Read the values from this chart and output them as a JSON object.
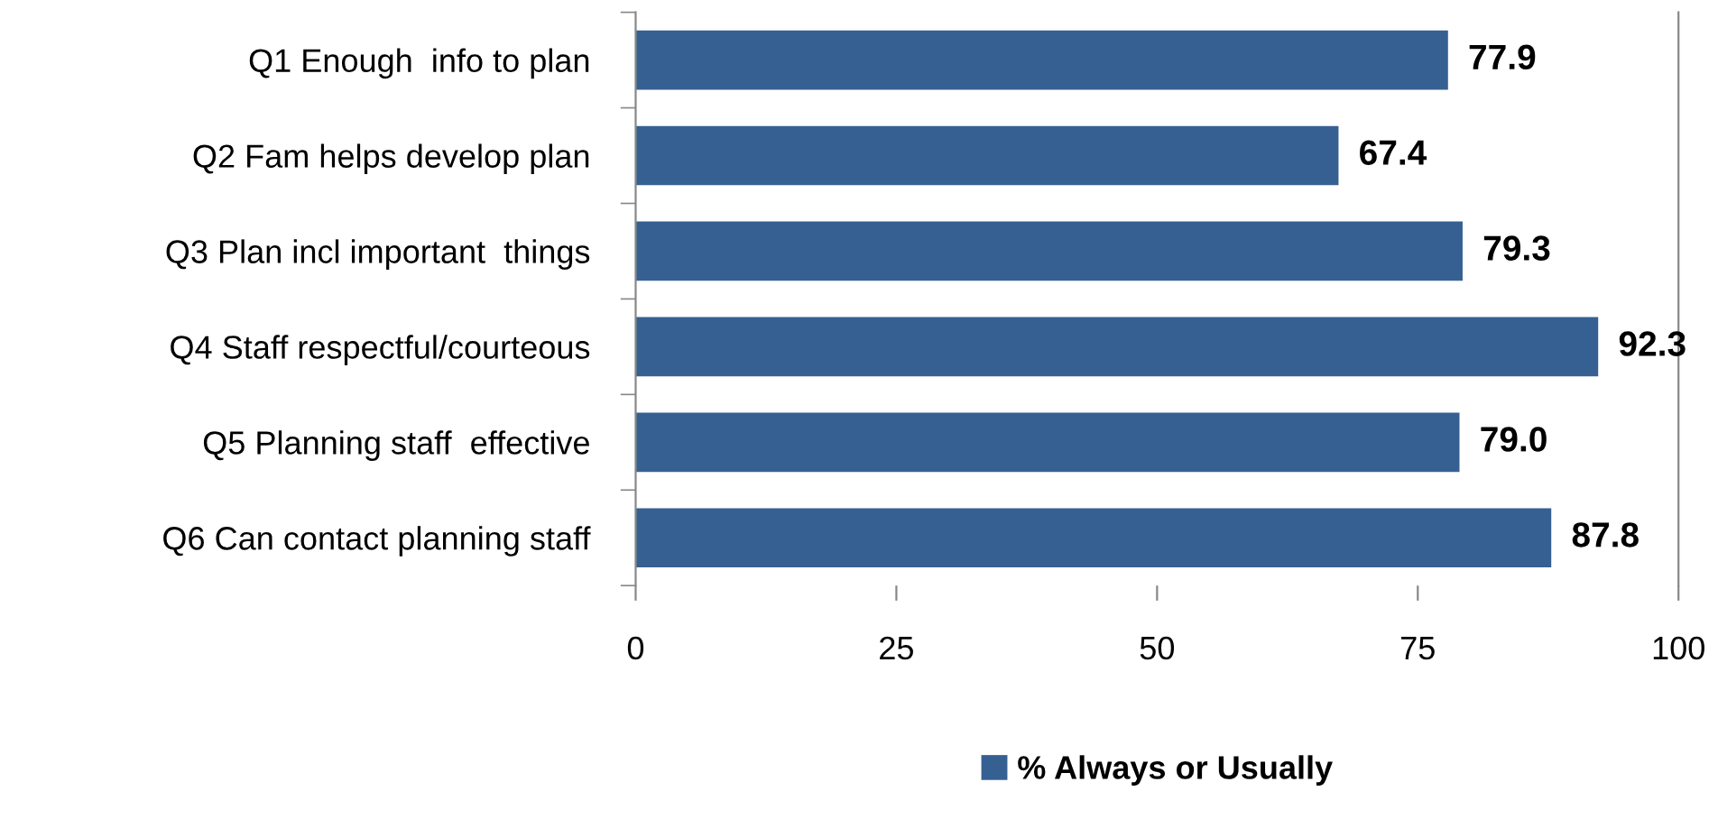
{
  "chart_data": {
    "type": "bar",
    "orientation": "horizontal",
    "categories": [
      "Q1 Enough  info to plan",
      "Q2 Fam helps develop plan",
      "Q3 Plan incl important  things",
      "Q4 Staff respectful/courteous",
      "Q5 Planning staff  effective",
      "Q6 Can contact planning staff"
    ],
    "series": [
      {
        "name": "% Always or Usually",
        "color": "#366092",
        "values": [
          77.9,
          67.4,
          79.3,
          92.3,
          79.0,
          87.8
        ],
        "value_labels": [
          "77.9",
          "67.4",
          "79.3",
          "92.3",
          "79.0",
          "87.8"
        ]
      }
    ],
    "xlim": [
      0,
      100
    ],
    "xticks": [
      0,
      25,
      50,
      75,
      100
    ],
    "grid": false,
    "legend": "bottom"
  }
}
